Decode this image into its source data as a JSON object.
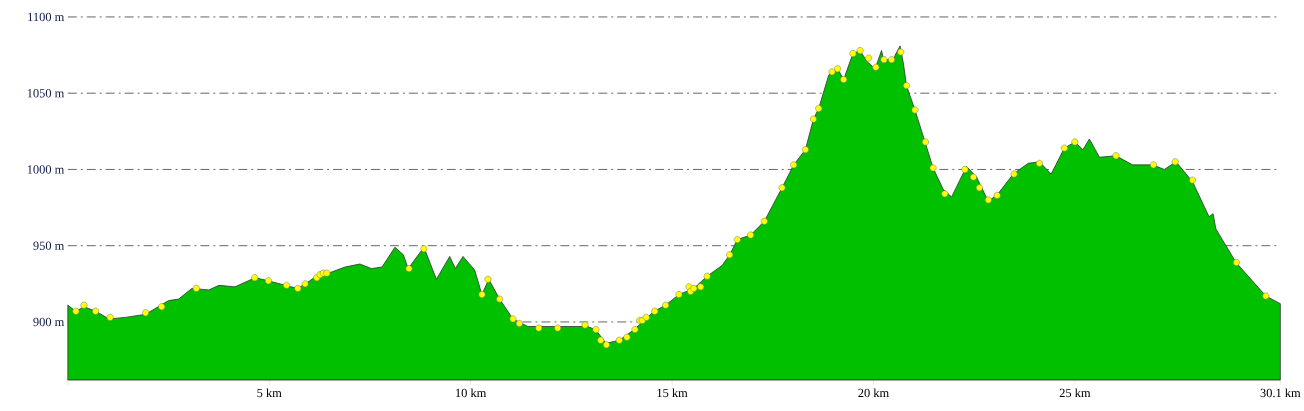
{
  "chart_data": {
    "type": "area",
    "xlim": [
      0,
      30.1
    ],
    "ylim": [
      862,
      1100
    ],
    "xticks": [
      {
        "value": 0,
        "label": null
      },
      {
        "value": 5,
        "label": "5 km"
      },
      {
        "value": 10,
        "label": "10 km"
      },
      {
        "value": 15,
        "label": "15 km"
      },
      {
        "value": 20,
        "label": "20 km"
      },
      {
        "value": 25,
        "label": "25 km"
      },
      {
        "value": 30.1,
        "label": "30.1 km"
      }
    ],
    "yticks": [
      {
        "value": 900,
        "label": "900 m"
      },
      {
        "value": 950,
        "label": "950 m"
      },
      {
        "value": 1000,
        "label": "1000 m"
      },
      {
        "value": 1050,
        "label": "1050 m"
      },
      {
        "value": 1100,
        "label": "1100 m"
      }
    ],
    "grid": "y",
    "series": [
      {
        "color": "#00c000",
        "x": [
          0,
          0.2,
          0.4,
          0.7,
          1.02,
          1.43,
          1.93,
          2.5,
          2.75,
          3.08,
          3.5,
          3.75,
          4.15,
          4.65,
          4.98,
          5.4,
          5.7,
          5.9,
          6.22,
          6.47,
          6.88,
          7.25,
          7.54,
          7.8,
          8.12,
          8.33,
          8.45,
          8.84,
          9.15,
          9.48,
          9.62,
          9.81,
          10.1,
          10.28,
          10.45,
          10.72,
          11.05,
          11.42,
          11.7,
          12.16,
          12.66,
          12.9,
          13.1,
          13.36,
          13.69,
          14.06,
          14.35,
          14.55,
          14.84,
          15.17,
          15.54,
          15.87,
          16.24,
          16.43,
          16.62,
          16.95,
          17.29,
          17.73,
          18.02,
          18.31,
          18.51,
          18.64,
          18.89,
          19.11,
          19.26,
          19.49,
          19.67,
          19.83,
          20.04,
          20.2,
          20.25,
          20.5,
          20.54,
          20.66,
          20.74,
          20.82,
          21.03,
          21.28,
          21.48,
          21.73,
          21.94,
          22.31,
          22.56,
          22.85,
          23.09,
          23.47,
          23.84,
          24.12,
          24.41,
          24.74,
          25.0,
          25.2,
          25.36,
          25.61,
          26.02,
          26.43,
          26.93,
          27.22,
          27.51,
          27.92,
          28.33,
          28.43,
          28.5,
          29.0,
          29.74,
          30.1
        ],
        "values": [
          911,
          907,
          910,
          907,
          902,
          903,
          905,
          914,
          915,
          922,
          921,
          924,
          923,
          929,
          927,
          924,
          922,
          925,
          931,
          932,
          936,
          938,
          935,
          936,
          949,
          944,
          935,
          949,
          928,
          943,
          935,
          943,
          934,
          918,
          928,
          915,
          902,
          897,
          897,
          897,
          897,
          897,
          895,
          886,
          888,
          895,
          902,
          907,
          911,
          918,
          922,
          930,
          937,
          944,
          954,
          957,
          966,
          988,
          1003,
          1013,
          1033,
          1040,
          1062,
          1066,
          1059,
          1076,
          1078,
          1071,
          1066,
          1078,
          1072,
          1072,
          1075,
          1081,
          1070,
          1055,
          1039,
          1018,
          1001,
          987,
          982,
          1002,
          995,
          979,
          984,
          997,
          1004,
          1005,
          997,
          1014,
          1018,
          1013,
          1020,
          1008,
          1009,
          1003,
          1003,
          1000,
          1005,
          992,
          969,
          971,
          961,
          939,
          917,
          912
        ]
      },
      {
        "type": "scatter",
        "color": "#ffff00",
        "marker": "circle",
        "x": [
          0.2,
          0.4,
          0.69,
          1.05,
          1.93,
          2.33,
          3.19,
          4.64,
          4.98,
          5.43,
          5.71,
          5.89,
          6.18,
          6.26,
          6.34,
          6.43,
          8.47,
          8.84,
          10.28,
          10.43,
          10.72,
          11.05,
          11.21,
          11.69,
          12.16,
          12.84,
          13.11,
          13.23,
          13.37,
          13.69,
          13.88,
          14.08,
          14.2,
          14.26,
          14.36,
          14.57,
          14.84,
          15.17,
          15.42,
          15.46,
          15.54,
          15.71,
          15.87,
          16.43,
          16.62,
          16.95,
          17.29,
          17.73,
          18.02,
          18.31,
          18.51,
          18.64,
          18.97,
          19.11,
          19.26,
          19.49,
          19.67,
          19.88,
          20.06,
          20.26,
          20.45,
          20.68,
          20.82,
          21.03,
          21.29,
          21.48,
          21.77,
          22.27,
          22.48,
          22.63,
          22.85,
          23.07,
          23.49,
          24.12,
          24.74,
          25.0,
          26.02,
          26.95,
          27.49,
          27.92,
          29.01,
          29.74
        ],
        "values": [
          907,
          911,
          907,
          903,
          906,
          910,
          922,
          929,
          927,
          924,
          922,
          925,
          929,
          931,
          932,
          932,
          935,
          948,
          918,
          928,
          915,
          902,
          899,
          896,
          896,
          898,
          895,
          888,
          885,
          888,
          890,
          895,
          901,
          901,
          903,
          907,
          911,
          918,
          923,
          920,
          922,
          923,
          930,
          944,
          954,
          957,
          966,
          988,
          1003,
          1013,
          1033,
          1040,
          1064,
          1066,
          1059,
          1076,
          1078,
          1073,
          1067,
          1072,
          1072,
          1077,
          1055,
          1039,
          1018,
          1001,
          984,
          1000,
          995,
          988,
          980,
          983,
          997,
          1004,
          1014,
          1018,
          1009,
          1003,
          1005,
          993,
          939,
          917
        ]
      }
    ]
  }
}
